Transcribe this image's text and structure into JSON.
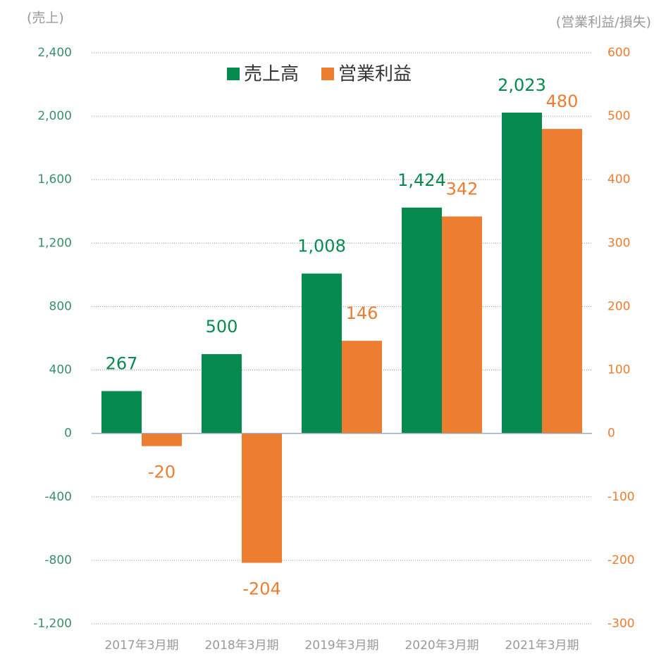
{
  "chart_data": {
    "type": "bar",
    "y_label": "(売上)",
    "y2_label": "(営業利益/損失)",
    "categories": [
      "2017年3月期",
      "2018年3月期",
      "2019年3月期",
      "2020年3月期",
      "2021年3月期"
    ],
    "series": [
      {
        "name": "売上高",
        "color": "#068a4f",
        "values": [
          267,
          500,
          1008,
          1424,
          2023
        ],
        "value_labels": [
          "267",
          "500",
          "1,008",
          "1,424",
          "2,023"
        ]
      },
      {
        "name": "営業利益",
        "color": "#ed7d31",
        "axis": "y2",
        "values": [
          -20,
          -204,
          146,
          342,
          480
        ]
      }
    ],
    "ylim": [
      -1200,
      2400
    ],
    "yticks": [
      {
        "value": -1200,
        "label": "-1,200"
      },
      -800,
      -400,
      0,
      400,
      800,
      {
        "value": 1200,
        "label": "1,200"
      },
      {
        "value": 1600,
        "label": "1,600"
      },
      {
        "value": 2000,
        "label": "2,000"
      },
      {
        "value": 2400,
        "label": "2,400"
      }
    ],
    "y2lim": [
      -300,
      600
    ],
    "y2ticks": [
      -300,
      -200,
      -100,
      0,
      100,
      200,
      300,
      400,
      500,
      600
    ],
    "grid": true,
    "legend": "top"
  }
}
